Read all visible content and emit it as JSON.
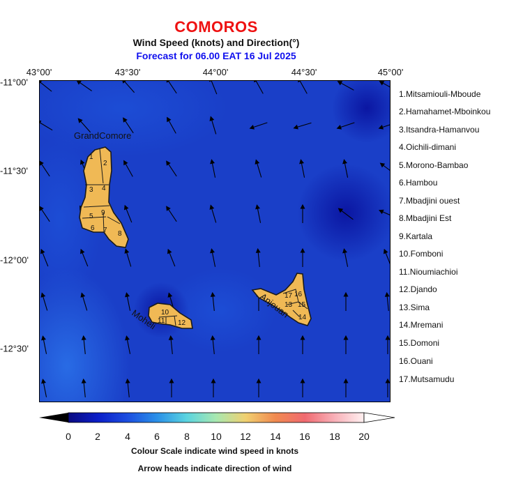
{
  "header": {
    "title": "COMOROS",
    "subtitle": "Wind Speed (knots) and Direction(°)",
    "forecast": "Forecast for  06.00 EAT 16 Jul 2025"
  },
  "axes": {
    "longitude_labels": [
      "43°00'",
      "43°30'",
      "44°00'",
      "44°30'",
      "45°00'"
    ],
    "latitude_labels": [
      "-11°00'",
      "-11°30'",
      "-12°00'",
      "-12°30'"
    ]
  },
  "map": {
    "island_labels": {
      "grande_comore": "GrandComore",
      "moheli": "Moheli",
      "anjouan": "Anjouan"
    },
    "region_numbers": [
      "1",
      "2",
      "3",
      "4",
      "5",
      "6",
      "7",
      "8",
      "9",
      "10",
      "11",
      "12",
      "13",
      "14",
      "15",
      "16",
      "17"
    ],
    "island_color": "#f0b955",
    "sea_color": "#1a3fc8"
  },
  "region_legend": [
    "1.Mitsamiouli-Mboude",
    "2.Hamahamet-Mboinkou",
    "3.Itsandra-Hamanvou",
    "4.Oichili-dimani",
    "5.Morono-Bambao",
    "6.Hambou",
    "7.Mbadjini ouest",
    "8.Mbadjini Est",
    "9.Kartala",
    "10.Fomboni",
    "11.Nioumiachioi",
    "12.Djando",
    "13.Sima",
    "14.Mremani",
    "15.Domoni",
    "16.Ouani",
    "17.Mutsamudu"
  ],
  "colorbar": {
    "ticks": [
      "0",
      "2",
      "4",
      "6",
      "8",
      "10",
      "12",
      "14",
      "16",
      "18",
      "20"
    ],
    "caption": "Colour Scale indicate wind speed in knots",
    "arrow_caption": "Arrow heads indicate direction of wind"
  }
}
